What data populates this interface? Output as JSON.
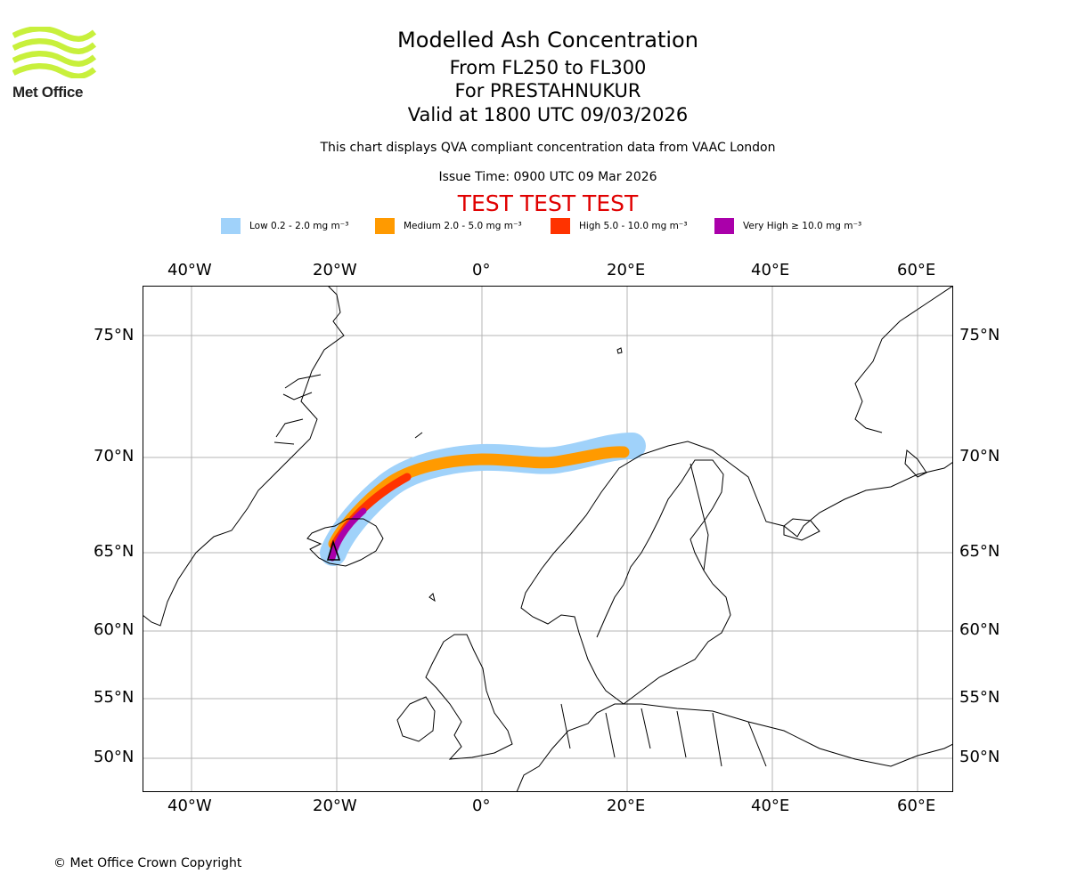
{
  "logo": {
    "text": "Met Office",
    "color": "#c8f03c"
  },
  "header": {
    "title": "Modelled Ash Concentration",
    "level_range": "From FL250 to FL300",
    "volcano_line": "For PRESTAHNUKUR",
    "valid_line": "Valid at 1800 UTC 09/03/2026",
    "note": "This chart displays QVA compliant concentration data from VAAC London",
    "issue_time": "Issue Time: 0900 UTC 09 Mar 2026",
    "test_banner": "TEST TEST TEST"
  },
  "legend": [
    {
      "label": "Low 0.2 - 2.0 mg m⁻³",
      "color": "#a0d2fa"
    },
    {
      "label": "Medium 2.0 - 5.0 mg m⁻³",
      "color": "#ff9a00"
    },
    {
      "label": "High 5.0 - 10.0 mg m⁻³",
      "color": "#ff3300"
    },
    {
      "label": "Very High ≥ 10.0 mg m⁻³",
      "color": "#aa00aa"
    }
  ],
  "axes": {
    "lon_labels": [
      "40°W",
      "20°W",
      "0°",
      "20°E",
      "40°E",
      "60°E"
    ],
    "lat_labels": [
      "75°N",
      "70°N",
      "65°N",
      "60°N",
      "55°N",
      "50°N"
    ]
  },
  "copyright": "© Met Office Crown Copyright"
}
